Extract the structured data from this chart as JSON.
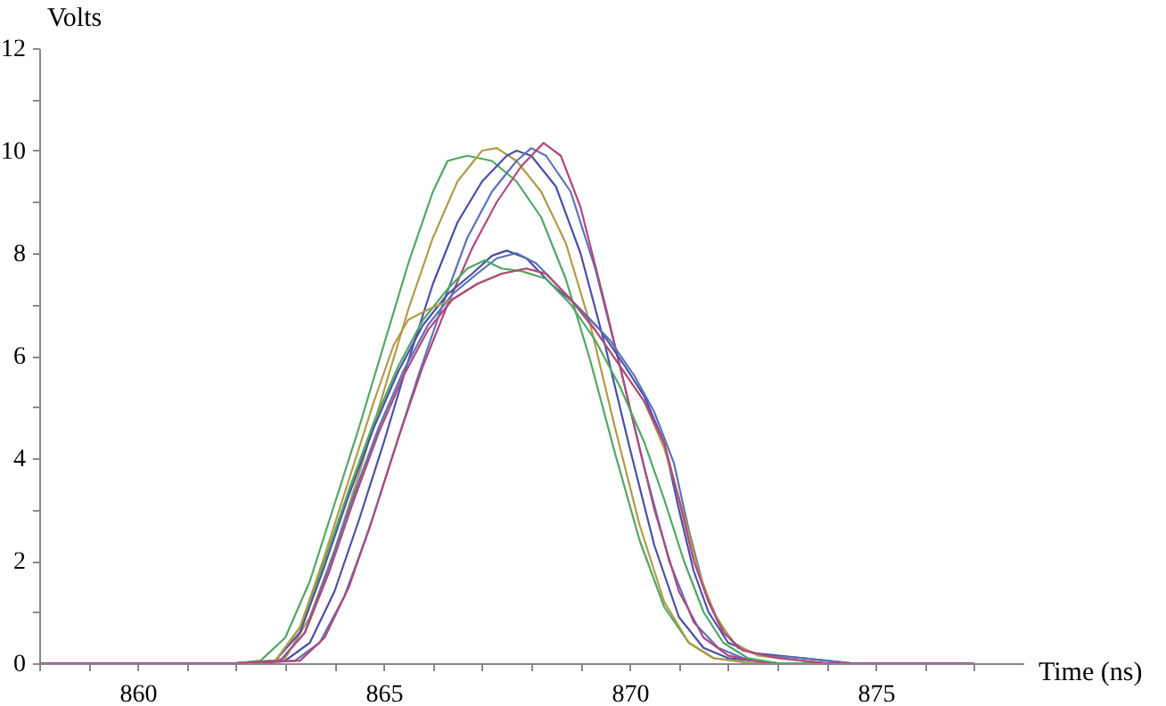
{
  "chart_data": {
    "type": "line",
    "xlabel": "Time (ns)",
    "ylabel": "Volts",
    "xlim": [
      858,
      878
    ],
    "ylim": [
      0,
      12
    ],
    "xticks": [
      {
        "value": 858,
        "label": null
      },
      {
        "value": 859,
        "label": null
      },
      860,
      {
        "value": 861,
        "label": null
      },
      {
        "value": 862,
        "label": null
      },
      {
        "value": 863,
        "label": null
      },
      {
        "value": 864,
        "label": null
      },
      865,
      {
        "value": 866,
        "label": null
      },
      {
        "value": 867,
        "label": null
      },
      {
        "value": 868,
        "label": null
      },
      {
        "value": 869,
        "label": null
      },
      870,
      {
        "value": 871,
        "label": null
      },
      {
        "value": 872,
        "label": null
      },
      {
        "value": 873,
        "label": null
      },
      {
        "value": 874,
        "label": null
      },
      875,
      {
        "value": 876,
        "label": null
      },
      {
        "value": 877,
        "label": null
      }
    ],
    "yticks": [
      0,
      {
        "value": 1,
        "label": null
      },
      2,
      {
        "value": 3,
        "label": null
      },
      4,
      {
        "value": 5,
        "label": null
      },
      6,
      {
        "value": 7,
        "label": null
      },
      8,
      {
        "value": 9,
        "label": null
      },
      10,
      {
        "value": 11,
        "label": null
      },
      12
    ],
    "line_style": "solid",
    "series": [
      {
        "color": "#4fa860",
        "x": [
          858,
          862,
          862.5,
          863,
          863.5,
          864,
          864.5,
          865,
          865.5,
          866,
          866.3,
          866.7,
          867.2,
          867.7,
          868.2,
          868.7,
          869.2,
          869.7,
          870.2,
          870.7,
          871.2,
          871.7,
          872.5,
          877
        ],
        "values": [
          0,
          0,
          0.05,
          0.5,
          1.6,
          3.1,
          4.6,
          6.2,
          7.8,
          9.2,
          9.8,
          9.9,
          9.8,
          9.4,
          8.7,
          7.5,
          5.9,
          4.1,
          2.4,
          1.1,
          0.4,
          0.1,
          0,
          0
        ]
      },
      {
        "color": "#b09a48",
        "x": [
          858,
          862.5,
          863,
          863.5,
          864,
          864.5,
          865,
          865.5,
          866,
          866.5,
          867,
          867.3,
          867.7,
          868.2,
          868.7,
          869.2,
          869.7,
          870.2,
          870.7,
          871.2,
          871.7,
          872.5,
          877
        ],
        "values": [
          0,
          0,
          0.1,
          0.9,
          2.2,
          3.7,
          5.3,
          6.9,
          8.3,
          9.4,
          10.0,
          10.05,
          9.8,
          9.2,
          8.2,
          6.6,
          4.6,
          2.7,
          1.2,
          0.4,
          0.1,
          0,
          0
        ]
      },
      {
        "color": "#4a4ea8",
        "x": [
          858,
          862,
          863,
          863.5,
          864,
          864.5,
          865,
          865.5,
          866,
          866.5,
          867,
          867.5,
          867.7,
          868,
          868.5,
          869,
          869.5,
          870,
          870.5,
          871,
          871.5,
          872,
          872.5,
          873,
          877
        ],
        "values": [
          0,
          0,
          0.05,
          0.4,
          1.4,
          2.8,
          4.3,
          5.9,
          7.4,
          8.6,
          9.4,
          9.9,
          10.0,
          9.9,
          9.3,
          8.0,
          6.2,
          4.2,
          2.3,
          0.9,
          0.3,
          0.1,
          0.05,
          0,
          0
        ]
      },
      {
        "color": "#5a72b8",
        "x": [
          858,
          862.2,
          863.2,
          863.7,
          864.2,
          864.7,
          865.2,
          865.7,
          866.2,
          866.7,
          867.2,
          867.7,
          868,
          868.3,
          868.8,
          869.3,
          869.8,
          870.3,
          870.8,
          871.3,
          871.8,
          872.3,
          873,
          877
        ],
        "values": [
          0,
          0,
          0.05,
          0.4,
          1.3,
          2.6,
          4.1,
          5.6,
          7.0,
          8.3,
          9.2,
          9.8,
          10.05,
          9.9,
          9.2,
          7.7,
          5.8,
          3.8,
          2.0,
          0.8,
          0.3,
          0.1,
          0,
          0
        ]
      },
      {
        "color": "#b0487f",
        "x": [
          858,
          862.3,
          863.3,
          863.8,
          864.3,
          864.8,
          865.3,
          865.8,
          866.3,
          866.8,
          867.3,
          867.8,
          868.25,
          868.6,
          869,
          869.5,
          870,
          870.5,
          871,
          871.5,
          872,
          872.5,
          873,
          877
        ],
        "values": [
          0,
          0,
          0.05,
          0.5,
          1.5,
          2.9,
          4.4,
          5.8,
          7.0,
          8.1,
          9.0,
          9.7,
          10.15,
          9.9,
          8.9,
          7.0,
          5.0,
          3.0,
          1.4,
          0.5,
          0.15,
          0.05,
          0,
          0
        ]
      },
      {
        "color": "#4a4ea8",
        "x": [
          858,
          862,
          862.8,
          863.3,
          863.8,
          864.3,
          864.8,
          865.3,
          865.8,
          866.3,
          866.8,
          867.2,
          867.5,
          867.9,
          868.4,
          868.9,
          869.4,
          869.9,
          870.3,
          870.7,
          871,
          871.3,
          871.6,
          872,
          872.5,
          873,
          874,
          874.5,
          877
        ],
        "values": [
          0,
          0,
          0.05,
          0.6,
          1.9,
          3.3,
          4.6,
          5.7,
          6.6,
          7.2,
          7.6,
          7.95,
          8.05,
          7.9,
          7.4,
          7.0,
          6.5,
          5.8,
          5.2,
          4.3,
          3.0,
          1.8,
          1.0,
          0.4,
          0.2,
          0.15,
          0.05,
          0,
          0
        ]
      },
      {
        "color": "#5a72b8",
        "x": [
          858,
          862,
          862.9,
          863.4,
          863.9,
          864.4,
          864.9,
          865.4,
          865.9,
          866.4,
          866.9,
          867.3,
          867.7,
          868.1,
          868.6,
          869.1,
          869.6,
          870.1,
          870.5,
          870.9,
          871.2,
          871.5,
          871.8,
          872.2,
          872.7,
          873.5,
          874.5,
          877
        ],
        "values": [
          0,
          0,
          0.05,
          0.6,
          1.9,
          3.3,
          4.6,
          5.7,
          6.6,
          7.2,
          7.6,
          7.9,
          8.0,
          7.8,
          7.3,
          6.8,
          6.3,
          5.6,
          4.9,
          3.9,
          2.6,
          1.5,
          0.8,
          0.3,
          0.15,
          0.1,
          0,
          0
        ]
      },
      {
        "color": "#4fa860",
        "x": [
          858,
          862,
          862.8,
          863.3,
          863.8,
          864.3,
          864.8,
          865.3,
          865.8,
          866.3,
          866.7,
          867.05,
          867.4,
          867.8,
          868.3,
          868.8,
          869.3,
          869.8,
          870.3,
          870.7,
          871.1,
          871.5,
          871.9,
          872.4,
          873,
          877
        ],
        "values": [
          0,
          0,
          0.05,
          0.7,
          2.0,
          3.4,
          4.7,
          5.8,
          6.7,
          7.3,
          7.7,
          7.86,
          7.7,
          7.65,
          7.5,
          7.0,
          6.3,
          5.4,
          4.3,
          3.2,
          2.0,
          1.0,
          0.4,
          0.1,
          0,
          0
        ]
      },
      {
        "color": "#b09a48",
        "x": [
          858,
          862,
          862.8,
          863.3,
          863.8,
          864.3,
          864.8,
          865.2,
          865.5,
          865.9,
          866.4,
          866.9,
          867.4,
          867.9,
          868.3,
          868.8,
          869.3,
          869.8,
          870.3,
          870.7,
          871.1,
          871.4,
          871.7,
          872.1,
          872.6,
          873.5,
          874,
          877
        ],
        "values": [
          0,
          0,
          0.05,
          0.7,
          2.1,
          3.6,
          5.1,
          6.2,
          6.7,
          6.9,
          7.1,
          7.4,
          7.6,
          7.7,
          7.6,
          7.1,
          6.5,
          5.8,
          5.1,
          4.2,
          2.9,
          1.8,
          1.0,
          0.4,
          0.15,
          0.05,
          0,
          0
        ]
      },
      {
        "color": "#b0487f",
        "x": [
          858,
          862,
          862.9,
          863.4,
          863.9,
          864.4,
          864.9,
          865.4,
          865.9,
          866.4,
          866.9,
          867.4,
          867.9,
          868.3,
          868.8,
          869.3,
          869.8,
          870.3,
          870.7,
          871,
          871.3,
          871.6,
          871.9,
          872.3,
          873,
          874,
          877
        ],
        "values": [
          0,
          0,
          0.05,
          0.6,
          1.8,
          3.2,
          4.5,
          5.6,
          6.5,
          7.1,
          7.4,
          7.6,
          7.7,
          7.6,
          7.1,
          6.5,
          5.8,
          5.1,
          4.3,
          3.2,
          2.0,
          1.2,
          0.6,
          0.25,
          0.1,
          0,
          0
        ]
      }
    ]
  }
}
